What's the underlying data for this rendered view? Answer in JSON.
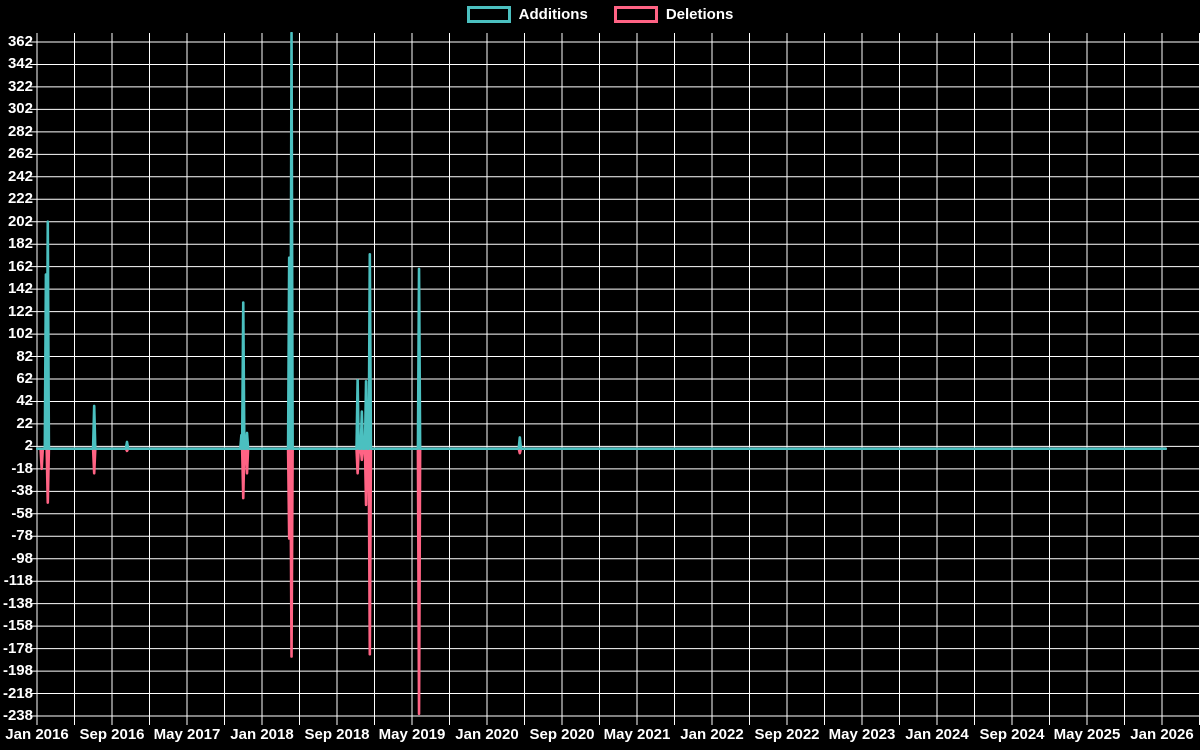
{
  "page": {
    "background_color": "#000000",
    "text_color": "#ffffff",
    "grid_color": "#ffffff"
  },
  "legend": {
    "position": "top-center",
    "items": [
      {
        "label": "Additions",
        "color": "#4bc0c0"
      },
      {
        "label": "Deletions",
        "color": "#ff6384"
      }
    ]
  },
  "chart_data": {
    "type": "line",
    "title": "",
    "subtitle": "",
    "grid": true,
    "legend_position": "top",
    "x_axis": {
      "label": "",
      "start": "Jan 2016",
      "end": "Jan 2026",
      "tick_interval_months": 8,
      "minor_grid_interval_months": 4,
      "tick_labels": [
        "Jan 2016",
        "Sep 2016",
        "May 2017",
        "Jan 2018",
        "Sep 2018",
        "May 2019",
        "Jan 2020",
        "Sep 2020",
        "May 2021",
        "Jan 2022",
        "Sep 2022",
        "May 2023",
        "Jan 2024",
        "Sep 2024",
        "May 2025",
        "Jan 2026"
      ]
    },
    "y_axis": {
      "label": "",
      "min": -238,
      "max": 370,
      "tick_step": 20,
      "tick_labels": [
        362,
        342,
        322,
        302,
        282,
        262,
        242,
        222,
        202,
        182,
        162,
        142,
        122,
        102,
        82,
        62,
        42,
        22,
        2,
        -18,
        -38,
        -58,
        -78,
        -98,
        -118,
        -138,
        -158,
        -178,
        -198,
        -218,
        -238
      ]
    },
    "series": [
      {
        "name": "Additions",
        "color": "#4bc0c0",
        "baseline_value": 0
      },
      {
        "name": "Deletions",
        "color": "#ff6384",
        "baseline_value": 0
      }
    ],
    "series_span_months": [
      0,
      120.4
    ],
    "events": [
      {
        "date": "Jan 2016",
        "months_from_start": 0.5,
        "additions": 0,
        "deletions": -18
      },
      {
        "date": "Feb 2016",
        "months_from_start": 0.95,
        "additions": 155,
        "deletions": 0
      },
      {
        "date": "Feb 2016",
        "months_from_start": 1.15,
        "additions": 202,
        "deletions": -48
      },
      {
        "date": "Jul 2016",
        "months_from_start": 6.1,
        "additions": 38,
        "deletions": -22
      },
      {
        "date": "Oct 2016",
        "months_from_start": 9.6,
        "additions": 6,
        "deletions": -2
      },
      {
        "date": "Nov 2017",
        "months_from_start": 21.8,
        "additions": 12,
        "deletions": 0
      },
      {
        "date": "Nov 2017",
        "months_from_start": 22.0,
        "additions": 130,
        "deletions": -44
      },
      {
        "date": "Dec 2017",
        "months_from_start": 22.4,
        "additions": 14,
        "deletions": -22
      },
      {
        "date": "Mar 2018",
        "months_from_start": 26.9,
        "additions": 170,
        "deletions": -80
      },
      {
        "date": "Apr 2018",
        "months_from_start": 27.15,
        "additions": 370,
        "deletions": -185,
        "clipped_at_plot_top": true
      },
      {
        "date": "Nov 2018",
        "months_from_start": 34.2,
        "additions": 61,
        "deletions": -22
      },
      {
        "date": "Nov 2018",
        "months_from_start": 34.65,
        "additions": 33,
        "deletions": -10
      },
      {
        "date": "Dec 2018",
        "months_from_start": 35.1,
        "additions": 60,
        "deletions": -50
      },
      {
        "date": "Dec 2018",
        "months_from_start": 35.5,
        "additions": 173,
        "deletions": -183
      },
      {
        "date": "May 2019",
        "months_from_start": 40.75,
        "additions": 160,
        "deletions": -236
      },
      {
        "date": "Apr 2020",
        "months_from_start": 51.5,
        "additions": 10,
        "deletions": -4
      }
    ]
  }
}
